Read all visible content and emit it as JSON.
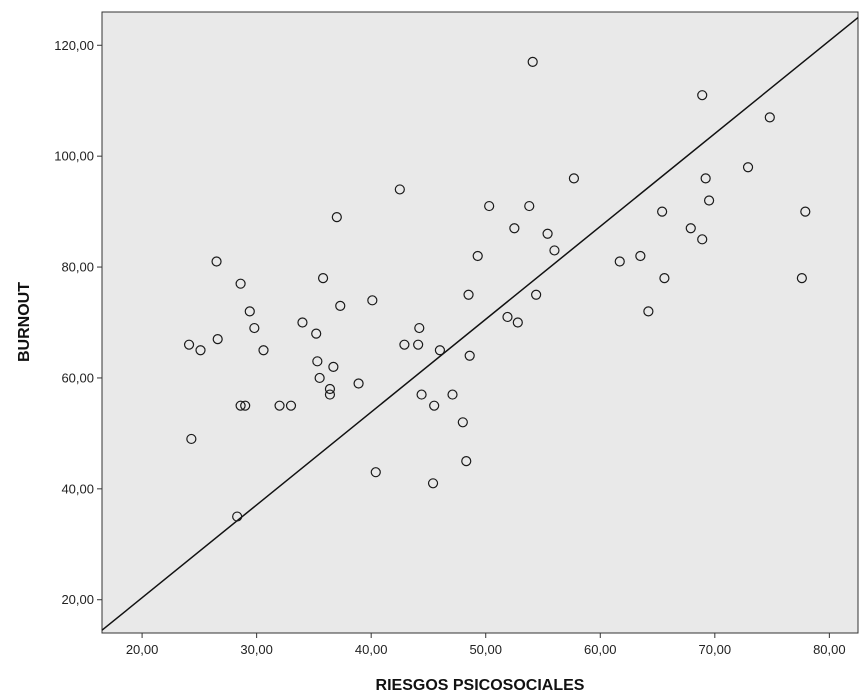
{
  "chart_data": {
    "type": "scatter",
    "title": "",
    "xlabel": "RIESGOS PSICOSOCIALES",
    "ylabel": "BURNOUT",
    "xlim": [
      16.5,
      82.5
    ],
    "ylim": [
      14,
      126
    ],
    "x_ticks": [
      "20,00",
      "30,00",
      "40,00",
      "50,00",
      "60,00",
      "70,00",
      "80,00"
    ],
    "y_ticks": [
      "20,00",
      "40,00",
      "60,00",
      "80,00",
      "100,00",
      "120,00"
    ],
    "plot_background": "#e9e9e9",
    "marker_color": "#1a1a1a",
    "fit_line": {
      "x": [
        16.5,
        82.5
      ],
      "y": [
        14.5,
        125
      ]
    },
    "points": [
      {
        "x": 24.1,
        "y": 66
      },
      {
        "x": 24.3,
        "y": 49
      },
      {
        "x": 25.1,
        "y": 65
      },
      {
        "x": 26.5,
        "y": 81
      },
      {
        "x": 26.6,
        "y": 67
      },
      {
        "x": 28.3,
        "y": 35
      },
      {
        "x": 28.6,
        "y": 77
      },
      {
        "x": 28.6,
        "y": 55
      },
      {
        "x": 29.0,
        "y": 55
      },
      {
        "x": 29.4,
        "y": 72
      },
      {
        "x": 29.8,
        "y": 69
      },
      {
        "x": 30.6,
        "y": 65
      },
      {
        "x": 32.0,
        "y": 55
      },
      {
        "x": 33.0,
        "y": 55
      },
      {
        "x": 34.0,
        "y": 70
      },
      {
        "x": 35.2,
        "y": 68
      },
      {
        "x": 35.3,
        "y": 63
      },
      {
        "x": 35.5,
        "y": 60
      },
      {
        "x": 35.8,
        "y": 78
      },
      {
        "x": 36.4,
        "y": 58
      },
      {
        "x": 36.4,
        "y": 57
      },
      {
        "x": 36.7,
        "y": 62
      },
      {
        "x": 37.0,
        "y": 89
      },
      {
        "x": 37.3,
        "y": 73
      },
      {
        "x": 38.9,
        "y": 59
      },
      {
        "x": 40.1,
        "y": 74
      },
      {
        "x": 40.4,
        "y": 43
      },
      {
        "x": 42.5,
        "y": 94
      },
      {
        "x": 42.9,
        "y": 66
      },
      {
        "x": 44.1,
        "y": 66
      },
      {
        "x": 44.2,
        "y": 69
      },
      {
        "x": 44.4,
        "y": 57
      },
      {
        "x": 45.4,
        "y": 41
      },
      {
        "x": 45.5,
        "y": 55
      },
      {
        "x": 46.0,
        "y": 65
      },
      {
        "x": 47.1,
        "y": 57
      },
      {
        "x": 48.0,
        "y": 52
      },
      {
        "x": 48.3,
        "y": 45
      },
      {
        "x": 48.5,
        "y": 75
      },
      {
        "x": 48.6,
        "y": 64
      },
      {
        "x": 49.3,
        "y": 82
      },
      {
        "x": 50.3,
        "y": 91
      },
      {
        "x": 51.9,
        "y": 71
      },
      {
        "x": 52.5,
        "y": 87
      },
      {
        "x": 52.8,
        "y": 70
      },
      {
        "x": 53.8,
        "y": 91
      },
      {
        "x": 54.1,
        "y": 117
      },
      {
        "x": 54.4,
        "y": 75
      },
      {
        "x": 55.4,
        "y": 86
      },
      {
        "x": 56.0,
        "y": 83
      },
      {
        "x": 57.7,
        "y": 96
      },
      {
        "x": 61.7,
        "y": 81
      },
      {
        "x": 63.5,
        "y": 82
      },
      {
        "x": 64.2,
        "y": 72
      },
      {
        "x": 65.4,
        "y": 90
      },
      {
        "x": 65.6,
        "y": 78
      },
      {
        "x": 67.9,
        "y": 87
      },
      {
        "x": 68.9,
        "y": 111
      },
      {
        "x": 68.9,
        "y": 85
      },
      {
        "x": 69.2,
        "y": 96
      },
      {
        "x": 69.5,
        "y": 92
      },
      {
        "x": 72.9,
        "y": 98
      },
      {
        "x": 74.8,
        "y": 107
      },
      {
        "x": 77.6,
        "y": 78
      },
      {
        "x": 77.9,
        "y": 90
      }
    ]
  }
}
